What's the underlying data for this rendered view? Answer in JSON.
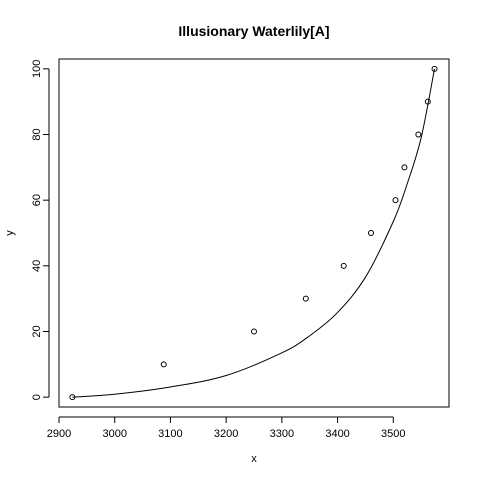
{
  "chart_data": {
    "type": "scatter",
    "title": "Illusionary Waterlily[A]",
    "xlabel": "x",
    "ylabel": "y",
    "xlim": [
      2900,
      3600
    ],
    "ylim": [
      -3,
      103
    ],
    "xticks": [
      2900,
      3000,
      3100,
      3200,
      3300,
      3400,
      3500
    ],
    "yticks": [
      0,
      20,
      40,
      60,
      80,
      100
    ],
    "grid": false,
    "points": [
      {
        "x": 2924,
        "y": 0
      },
      {
        "x": 3088,
        "y": 10
      },
      {
        "x": 3250,
        "y": 20
      },
      {
        "x": 3343,
        "y": 30
      },
      {
        "x": 3411,
        "y": 40
      },
      {
        "x": 3460,
        "y": 50
      },
      {
        "x": 3504,
        "y": 60
      },
      {
        "x": 3520,
        "y": 70
      },
      {
        "x": 3545,
        "y": 80
      },
      {
        "x": 3562,
        "y": 90
      },
      {
        "x": 3574,
        "y": 100
      }
    ],
    "curve": [
      {
        "x": 2924,
        "y": 0
      },
      {
        "x": 3000,
        "y": 0.9
      },
      {
        "x": 3100,
        "y": 3.1
      },
      {
        "x": 3200,
        "y": 6.6
      },
      {
        "x": 3300,
        "y": 13.5
      },
      {
        "x": 3350,
        "y": 18.7
      },
      {
        "x": 3400,
        "y": 25.8
      },
      {
        "x": 3450,
        "y": 36.5
      },
      {
        "x": 3500,
        "y": 53.5
      },
      {
        "x": 3525,
        "y": 65
      },
      {
        "x": 3550,
        "y": 79
      },
      {
        "x": 3574,
        "y": 100
      }
    ]
  }
}
